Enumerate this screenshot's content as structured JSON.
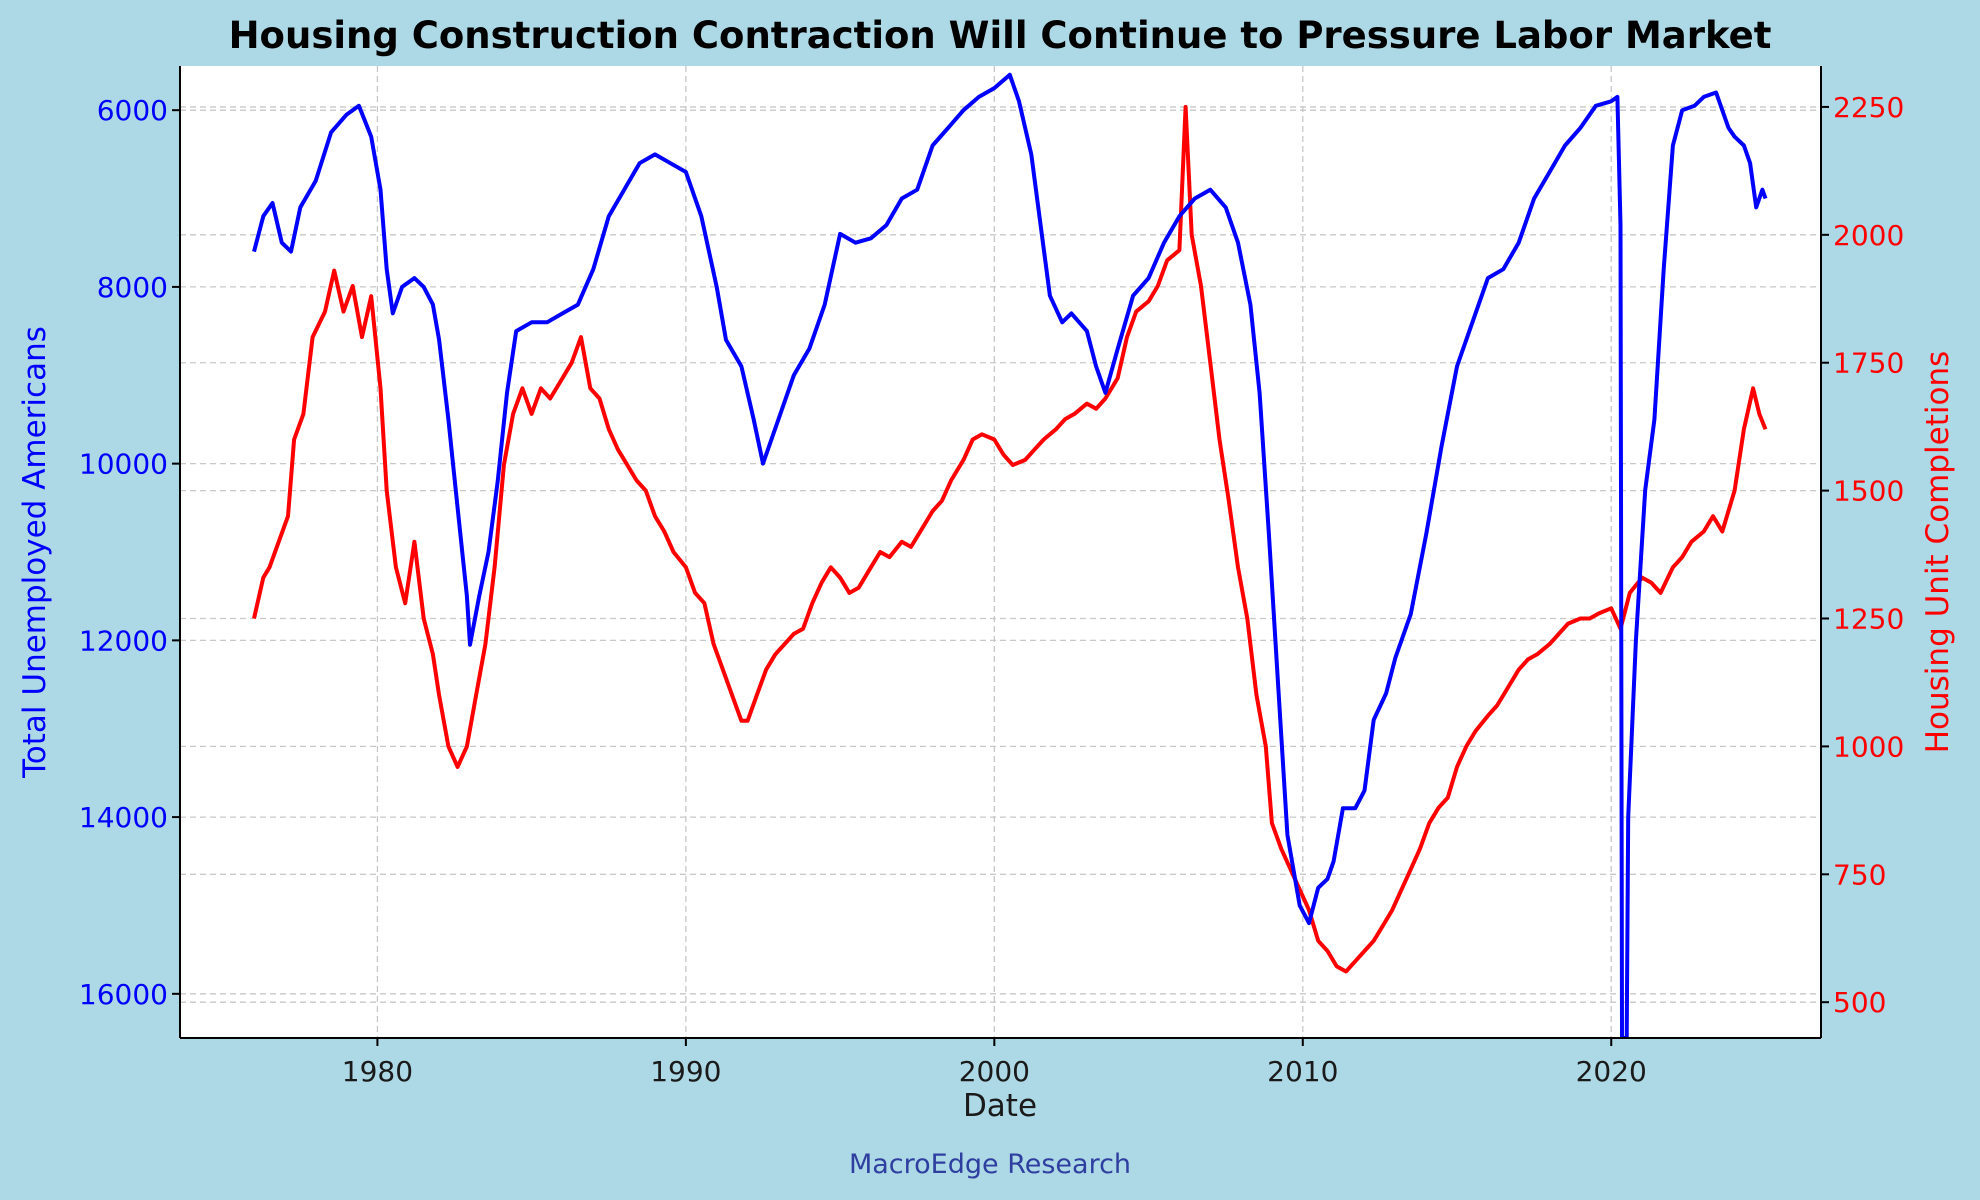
{
  "page": {
    "background": "#add8e6"
  },
  "footer": {
    "text": "MacroEdge Research",
    "color": "#2e3fa0"
  },
  "chart_data": {
    "type": "line",
    "title": "Housing Construction Contraction Will Continue to Pressure Labor Market",
    "xlabel": "Date",
    "ylabel_left": "Total Unemployed Americans",
    "ylabel_right": "Housing Unit Completions",
    "x_ticks": [
      "1980",
      "1990",
      "2000",
      "2010",
      "2020"
    ],
    "x_range": [
      1973.6,
      2026.8
    ],
    "y_left_ticks": [
      "6000",
      "8000",
      "10000",
      "12000",
      "14000",
      "16000"
    ],
    "y_left_range": [
      5500,
      16500
    ],
    "y_left_inverted": true,
    "y_right_ticks": [
      "500",
      "750",
      "1000",
      "1250",
      "1500",
      "1750",
      "2000",
      "2250"
    ],
    "y_right_range": [
      430,
      2330
    ],
    "grid": true,
    "series": [
      {
        "axis": "left",
        "color": "#0000ff",
        "points": [
          [
            1976.0,
            7600
          ],
          [
            1976.3,
            7200
          ],
          [
            1976.6,
            7050
          ],
          [
            1976.9,
            7500
          ],
          [
            1977.2,
            7600
          ],
          [
            1977.5,
            7100
          ],
          [
            1978.0,
            6800
          ],
          [
            1978.5,
            6250
          ],
          [
            1979.0,
            6050
          ],
          [
            1979.4,
            5950
          ],
          [
            1979.8,
            6300
          ],
          [
            1980.1,
            6900
          ],
          [
            1980.3,
            7800
          ],
          [
            1980.5,
            8300
          ],
          [
            1980.8,
            8000
          ],
          [
            1981.2,
            7900
          ],
          [
            1981.5,
            8000
          ],
          [
            1981.8,
            8200
          ],
          [
            1982.0,
            8600
          ],
          [
            1982.3,
            9500
          ],
          [
            1982.6,
            10500
          ],
          [
            1982.9,
            11500
          ],
          [
            1983.0,
            12050
          ],
          [
            1983.3,
            11500
          ],
          [
            1983.6,
            11000
          ],
          [
            1983.9,
            10200
          ],
          [
            1984.2,
            9200
          ],
          [
            1984.5,
            8500
          ],
          [
            1985.0,
            8400
          ],
          [
            1985.5,
            8400
          ],
          [
            1986.0,
            8300
          ],
          [
            1986.5,
            8200
          ],
          [
            1987.0,
            7800
          ],
          [
            1987.5,
            7200
          ],
          [
            1988.0,
            6900
          ],
          [
            1988.5,
            6600
          ],
          [
            1989.0,
            6500
          ],
          [
            1989.5,
            6600
          ],
          [
            1990.0,
            6700
          ],
          [
            1990.5,
            7200
          ],
          [
            1991.0,
            8000
          ],
          [
            1991.3,
            8600
          ],
          [
            1991.8,
            8900
          ],
          [
            1992.2,
            9500
          ],
          [
            1992.5,
            10000
          ],
          [
            1993.0,
            9500
          ],
          [
            1993.5,
            9000
          ],
          [
            1994.0,
            8700
          ],
          [
            1994.5,
            8200
          ],
          [
            1995.0,
            7400
          ],
          [
            1995.5,
            7500
          ],
          [
            1996.0,
            7450
          ],
          [
            1996.5,
            7300
          ],
          [
            1997.0,
            7000
          ],
          [
            1997.5,
            6900
          ],
          [
            1998.0,
            6400
          ],
          [
            1998.5,
            6200
          ],
          [
            1999.0,
            6000
          ],
          [
            1999.5,
            5850
          ],
          [
            2000.0,
            5750
          ],
          [
            2000.5,
            5600
          ],
          [
            2000.8,
            5900
          ],
          [
            2001.2,
            6500
          ],
          [
            2001.5,
            7300
          ],
          [
            2001.8,
            8100
          ],
          [
            2002.2,
            8400
          ],
          [
            2002.5,
            8300
          ],
          [
            2003.0,
            8500
          ],
          [
            2003.3,
            8900
          ],
          [
            2003.6,
            9200
          ],
          [
            2004.0,
            8700
          ],
          [
            2004.5,
            8100
          ],
          [
            2005.0,
            7900
          ],
          [
            2005.5,
            7500
          ],
          [
            2006.0,
            7200
          ],
          [
            2006.5,
            7000
          ],
          [
            2007.0,
            6900
          ],
          [
            2007.5,
            7100
          ],
          [
            2007.9,
            7500
          ],
          [
            2008.3,
            8200
          ],
          [
            2008.6,
            9200
          ],
          [
            2008.9,
            10800
          ],
          [
            2009.2,
            12500
          ],
          [
            2009.5,
            14200
          ],
          [
            2009.9,
            15000
          ],
          [
            2010.2,
            15200
          ],
          [
            2010.5,
            14800
          ],
          [
            2010.8,
            14700
          ],
          [
            2011.0,
            14500
          ],
          [
            2011.3,
            13900
          ],
          [
            2011.7,
            13900
          ],
          [
            2012.0,
            13700
          ],
          [
            2012.3,
            12900
          ],
          [
            2012.7,
            12600
          ],
          [
            2013.0,
            12200
          ],
          [
            2013.5,
            11700
          ],
          [
            2014.0,
            10800
          ],
          [
            2014.5,
            9800
          ],
          [
            2015.0,
            8900
          ],
          [
            2015.5,
            8400
          ],
          [
            2016.0,
            7900
          ],
          [
            2016.5,
            7800
          ],
          [
            2017.0,
            7500
          ],
          [
            2017.5,
            7000
          ],
          [
            2018.0,
            6700
          ],
          [
            2018.5,
            6400
          ],
          [
            2019.0,
            6200
          ],
          [
            2019.5,
            5950
          ],
          [
            2020.0,
            5900
          ],
          [
            2020.2,
            5850
          ],
          [
            2020.3,
            7300
          ],
          [
            2020.35,
            16500
          ],
          [
            2020.5,
            16500
          ],
          [
            2020.55,
            14000
          ],
          [
            2020.8,
            12000
          ],
          [
            2021.1,
            10300
          ],
          [
            2021.4,
            9500
          ],
          [
            2021.7,
            7800
          ],
          [
            2022.0,
            6400
          ],
          [
            2022.3,
            6000
          ],
          [
            2022.7,
            5950
          ],
          [
            2023.0,
            5850
          ],
          [
            2023.4,
            5800
          ],
          [
            2023.8,
            6200
          ],
          [
            2024.0,
            6300
          ],
          [
            2024.3,
            6400
          ],
          [
            2024.5,
            6600
          ],
          [
            2024.7,
            7100
          ],
          [
            2024.9,
            6900
          ],
          [
            2025.0,
            7000
          ]
        ]
      },
      {
        "axis": "right",
        "color": "#ff0000",
        "points": [
          [
            1976.0,
            1250
          ],
          [
            1976.3,
            1330
          ],
          [
            1976.5,
            1350
          ],
          [
            1976.8,
            1400
          ],
          [
            1977.1,
            1450
          ],
          [
            1977.3,
            1600
          ],
          [
            1977.6,
            1650
          ],
          [
            1977.9,
            1800
          ],
          [
            1978.3,
            1850
          ],
          [
            1978.6,
            1930
          ],
          [
            1978.9,
            1850
          ],
          [
            1979.2,
            1900
          ],
          [
            1979.5,
            1800
          ],
          [
            1979.8,
            1880
          ],
          [
            1980.1,
            1700
          ],
          [
            1980.3,
            1500
          ],
          [
            1980.6,
            1350
          ],
          [
            1980.9,
            1280
          ],
          [
            1981.2,
            1400
          ],
          [
            1981.5,
            1250
          ],
          [
            1981.8,
            1180
          ],
          [
            1982.0,
            1100
          ],
          [
            1982.3,
            1000
          ],
          [
            1982.6,
            960
          ],
          [
            1982.9,
            1000
          ],
          [
            1983.2,
            1100
          ],
          [
            1983.5,
            1200
          ],
          [
            1983.8,
            1350
          ],
          [
            1984.1,
            1550
          ],
          [
            1984.4,
            1650
          ],
          [
            1984.7,
            1700
          ],
          [
            1985.0,
            1650
          ],
          [
            1985.3,
            1700
          ],
          [
            1985.6,
            1680
          ],
          [
            1986.0,
            1720
          ],
          [
            1986.3,
            1750
          ],
          [
            1986.6,
            1800
          ],
          [
            1986.9,
            1700
          ],
          [
            1987.2,
            1680
          ],
          [
            1987.5,
            1620
          ],
          [
            1987.8,
            1580
          ],
          [
            1988.1,
            1550
          ],
          [
            1988.4,
            1520
          ],
          [
            1988.7,
            1500
          ],
          [
            1989.0,
            1450
          ],
          [
            1989.3,
            1420
          ],
          [
            1989.6,
            1380
          ],
          [
            1990.0,
            1350
          ],
          [
            1990.3,
            1300
          ],
          [
            1990.6,
            1280
          ],
          [
            1990.9,
            1200
          ],
          [
            1991.2,
            1150
          ],
          [
            1991.5,
            1100
          ],
          [
            1991.8,
            1050
          ],
          [
            1992.0,
            1050
          ],
          [
            1992.3,
            1100
          ],
          [
            1992.6,
            1150
          ],
          [
            1992.9,
            1180
          ],
          [
            1993.2,
            1200
          ],
          [
            1993.5,
            1220
          ],
          [
            1993.8,
            1230
          ],
          [
            1994.1,
            1280
          ],
          [
            1994.4,
            1320
          ],
          [
            1994.7,
            1350
          ],
          [
            1995.0,
            1330
          ],
          [
            1995.3,
            1300
          ],
          [
            1995.6,
            1310
          ],
          [
            1996.0,
            1350
          ],
          [
            1996.3,
            1380
          ],
          [
            1996.6,
            1370
          ],
          [
            1997.0,
            1400
          ],
          [
            1997.3,
            1390
          ],
          [
            1997.6,
            1420
          ],
          [
            1998.0,
            1460
          ],
          [
            1998.3,
            1480
          ],
          [
            1998.6,
            1520
          ],
          [
            1999.0,
            1560
          ],
          [
            1999.3,
            1600
          ],
          [
            1999.6,
            1610
          ],
          [
            2000.0,
            1600
          ],
          [
            2000.3,
            1570
          ],
          [
            2000.6,
            1550
          ],
          [
            2001.0,
            1560
          ],
          [
            2001.3,
            1580
          ],
          [
            2001.6,
            1600
          ],
          [
            2002.0,
            1620
          ],
          [
            2002.3,
            1640
          ],
          [
            2002.6,
            1650
          ],
          [
            2003.0,
            1670
          ],
          [
            2003.3,
            1660
          ],
          [
            2003.6,
            1680
          ],
          [
            2004.0,
            1720
          ],
          [
            2004.3,
            1800
          ],
          [
            2004.6,
            1850
          ],
          [
            2005.0,
            1870
          ],
          [
            2005.3,
            1900
          ],
          [
            2005.6,
            1950
          ],
          [
            2006.0,
            1970
          ],
          [
            2006.2,
            2250
          ],
          [
            2006.4,
            2000
          ],
          [
            2006.7,
            1900
          ],
          [
            2007.0,
            1750
          ],
          [
            2007.3,
            1600
          ],
          [
            2007.6,
            1480
          ],
          [
            2007.9,
            1350
          ],
          [
            2008.2,
            1250
          ],
          [
            2008.5,
            1100
          ],
          [
            2008.8,
            1000
          ],
          [
            2009.0,
            850
          ],
          [
            2009.3,
            800
          ],
          [
            2009.6,
            760
          ],
          [
            2009.9,
            720
          ],
          [
            2010.2,
            680
          ],
          [
            2010.5,
            620
          ],
          [
            2010.8,
            600
          ],
          [
            2011.1,
            570
          ],
          [
            2011.4,
            560
          ],
          [
            2011.7,
            580
          ],
          [
            2012.0,
            600
          ],
          [
            2012.3,
            620
          ],
          [
            2012.6,
            650
          ],
          [
            2012.9,
            680
          ],
          [
            2013.2,
            720
          ],
          [
            2013.5,
            760
          ],
          [
            2013.8,
            800
          ],
          [
            2014.1,
            850
          ],
          [
            2014.4,
            880
          ],
          [
            2014.7,
            900
          ],
          [
            2015.0,
            960
          ],
          [
            2015.3,
            1000
          ],
          [
            2015.6,
            1030
          ],
          [
            2016.0,
            1060
          ],
          [
            2016.3,
            1080
          ],
          [
            2016.6,
            1110
          ],
          [
            2017.0,
            1150
          ],
          [
            2017.3,
            1170
          ],
          [
            2017.6,
            1180
          ],
          [
            2018.0,
            1200
          ],
          [
            2018.3,
            1220
          ],
          [
            2018.6,
            1240
          ],
          [
            2019.0,
            1250
          ],
          [
            2019.3,
            1250
          ],
          [
            2019.6,
            1260
          ],
          [
            2020.0,
            1270
          ],
          [
            2020.3,
            1230
          ],
          [
            2020.6,
            1300
          ],
          [
            2021.0,
            1330
          ],
          [
            2021.3,
            1320
          ],
          [
            2021.6,
            1300
          ],
          [
            2022.0,
            1350
          ],
          [
            2022.3,
            1370
          ],
          [
            2022.6,
            1400
          ],
          [
            2023.0,
            1420
          ],
          [
            2023.3,
            1450
          ],
          [
            2023.6,
            1420
          ],
          [
            2024.0,
            1500
          ],
          [
            2024.3,
            1620
          ],
          [
            2024.6,
            1700
          ],
          [
            2024.8,
            1650
          ],
          [
            2025.0,
            1620
          ]
        ]
      }
    ]
  }
}
